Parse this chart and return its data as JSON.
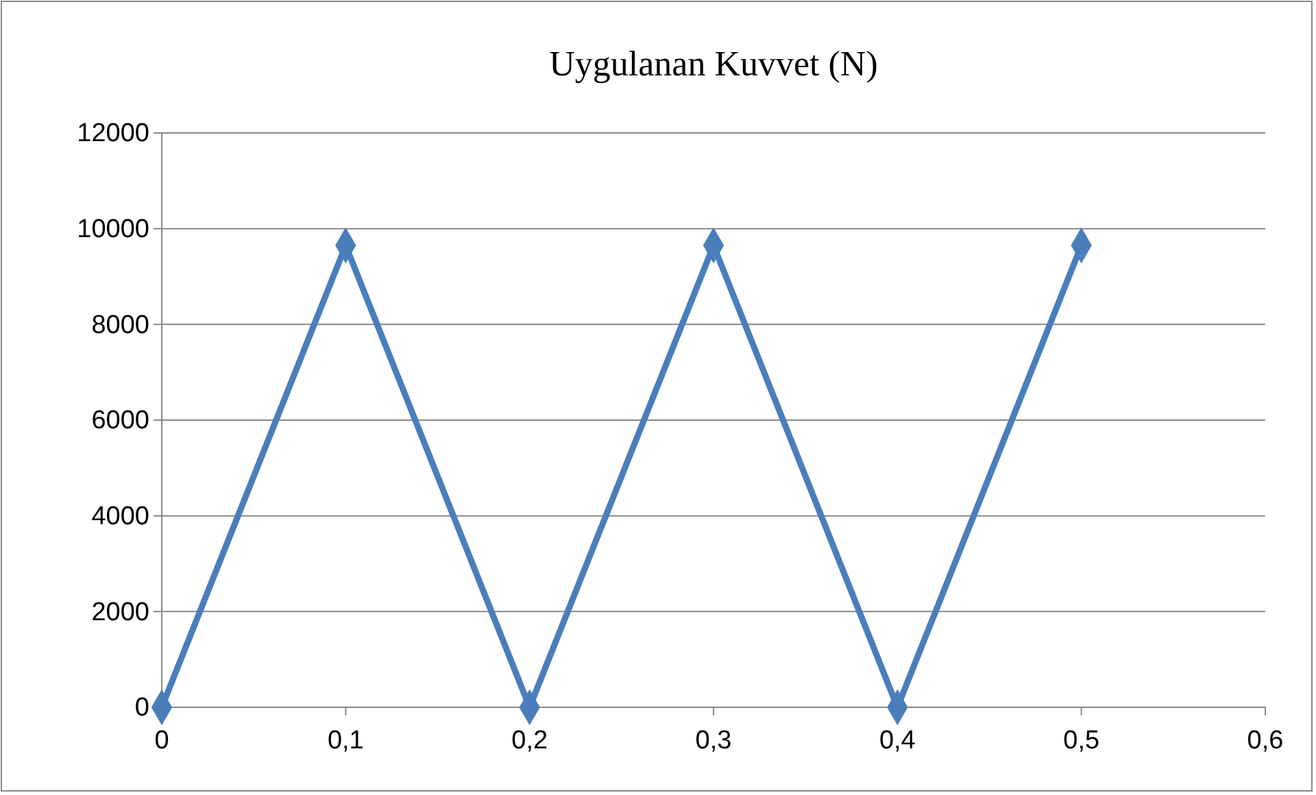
{
  "chart_data": {
    "type": "line",
    "title": "Uygulanan Kuvvet (N)",
    "x": [
      0,
      0.1,
      0.2,
      0.3,
      0.4,
      0.5
    ],
    "series": [
      {
        "color": "#4a7ebb",
        "values": [
          0,
          9650,
          0,
          9650,
          0,
          9650
        ]
      }
    ],
    "xlim": [
      0,
      0.6
    ],
    "xticks": [
      0,
      {
        "value": 0.1,
        "label": "0,1"
      },
      {
        "value": 0.2,
        "label": "0,2"
      },
      {
        "value": 0.3,
        "label": "0,3"
      },
      {
        "value": 0.4,
        "label": "0,4"
      },
      {
        "value": 0.5,
        "label": "0,5"
      },
      {
        "value": 0.6,
        "label": "0,6"
      }
    ],
    "ylim": [
      0,
      12000
    ],
    "yticks": [
      0,
      2000,
      4000,
      6000,
      8000,
      10000,
      12000
    ],
    "grid": "y",
    "marker": "diamond",
    "line_style": "solid"
  }
}
